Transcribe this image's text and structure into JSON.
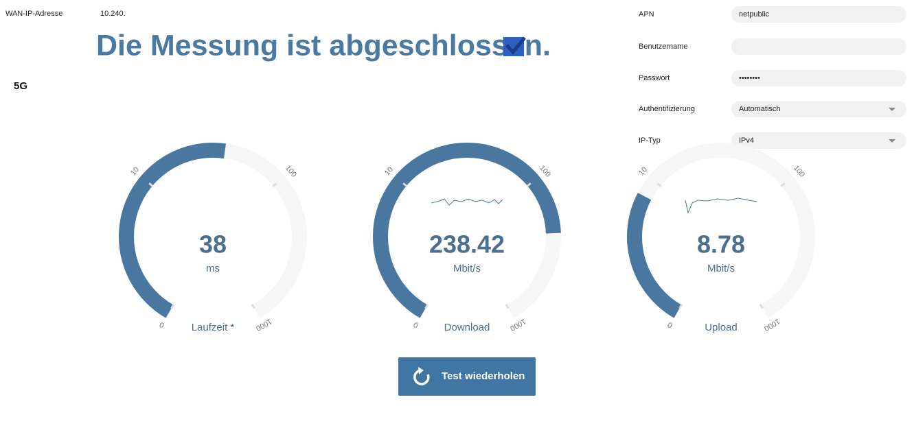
{
  "header": {
    "wan_label": "WAN-IP-Adresse",
    "wan_value": "10.240.",
    "title": "Die Messung ist abgeschlossen.",
    "network": "5G"
  },
  "settings": [
    {
      "label": "APN",
      "value": "netpublic"
    },
    {
      "label": "Benutzername"
    },
    {
      "label": "Passwort",
      "value": "••••••••"
    },
    {
      "label": "Authentifizierung",
      "value": "Automatisch"
    },
    {
      "label": "IP-Typ",
      "value": "IPv4"
    }
  ],
  "gauges": [
    {
      "label": "Laufzeit *",
      "value": 38,
      "unit": "ms",
      "ticks": [
        0,
        10,
        100,
        1000
      ]
    },
    {
      "label": "Download",
      "value": 238.42,
      "unit": "Mbit/s",
      "ticks": [
        0,
        10,
        100,
        1000
      ]
    },
    {
      "label": "Upload",
      "value": 8.78,
      "unit": "Mbit/s",
      "ticks": [
        0,
        10,
        100,
        1000
      ]
    }
  ],
  "button": "Test wiederholen"
}
